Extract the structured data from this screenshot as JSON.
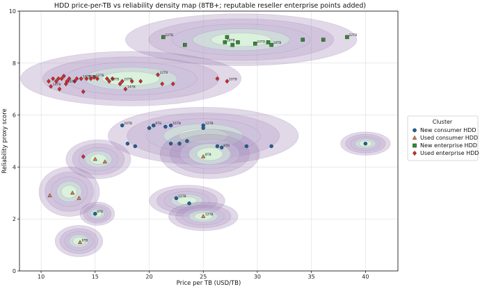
{
  "chart_data": {
    "type": "scatter",
    "title": "HDD price-per-TB vs reliability density map (8TB+; reputable reseller enterprise points added)",
    "xlabel": "Price per TB (USD/TB)",
    "ylabel": "Reliability proxy score",
    "xlim": [
      8,
      43
    ],
    "ylim": [
      0,
      10
    ],
    "xticks": [
      10,
      15,
      20,
      25,
      30,
      35,
      40
    ],
    "yticks": [
      0,
      2,
      4,
      6,
      8,
      10
    ],
    "grid": true,
    "legend": {
      "title": "Cluster",
      "placement": "right",
      "entries": [
        "New consumer HDD",
        "Used consumer HDD",
        "New enterprise HDD",
        "Used enterprise HDD"
      ]
    },
    "colors": {
      "New consumer HDD": "#1f5fa0",
      "Used consumer HDD": "#e07b39",
      "New enterprise HDD": "#2e8b2e",
      "Used enterprise HDD": "#d62728",
      "density_outer": "#9b7fb3",
      "density_inner": "#dcf5dc"
    },
    "density_regions": [
      {
        "cx": 28.5,
        "cy": 8.9,
        "rx": 10.7,
        "ry": 1.0
      },
      {
        "cx": 18.3,
        "cy": 7.4,
        "rx": 10.2,
        "ry": 1.05
      },
      {
        "cx": 25.0,
        "cy": 5.2,
        "rx": 8.8,
        "ry": 1.1
      },
      {
        "cx": 25.6,
        "cy": 4.5,
        "rx": 4.6,
        "ry": 0.95
      },
      {
        "cx": 40.0,
        "cy": 4.9,
        "rx": 2.3,
        "ry": 0.45
      },
      {
        "cx": 12.6,
        "cy": 3.05,
        "rx": 2.8,
        "ry": 0.95
      },
      {
        "cx": 15.3,
        "cy": 4.3,
        "rx": 3.0,
        "ry": 0.75
      },
      {
        "cx": 15.2,
        "cy": 2.2,
        "rx": 1.6,
        "ry": 0.45
      },
      {
        "cx": 13.5,
        "cy": 1.15,
        "rx": 2.2,
        "ry": 0.6
      },
      {
        "cx": 23.5,
        "cy": 2.7,
        "rx": 3.5,
        "ry": 0.6
      },
      {
        "cx": 25.0,
        "cy": 2.1,
        "rx": 3.2,
        "ry": 0.55
      }
    ],
    "series": [
      {
        "name": "New consumer HDD",
        "marker": "circle",
        "points": [
          {
            "x": 17.5,
            "y": 5.6,
            "label": "20TB"
          },
          {
            "x": 18.0,
            "y": 4.9,
            "label": ""
          },
          {
            "x": 18.7,
            "y": 4.8,
            "label": ""
          },
          {
            "x": 20.0,
            "y": 5.5,
            "label": ""
          },
          {
            "x": 20.4,
            "y": 5.6,
            "label": "8TB"
          },
          {
            "x": 21.5,
            "y": 5.55,
            "label": ""
          },
          {
            "x": 22.0,
            "y": 5.6,
            "label": "16TB"
          },
          {
            "x": 22.0,
            "y": 4.9,
            "label": ""
          },
          {
            "x": 22.8,
            "y": 4.9,
            "label": ""
          },
          {
            "x": 23.5,
            "y": 5.0,
            "label": ""
          },
          {
            "x": 25.0,
            "y": 5.6,
            "label": "12TB"
          },
          {
            "x": 25.0,
            "y": 5.5,
            "label": ""
          },
          {
            "x": 26.3,
            "y": 4.8,
            "label": ""
          },
          {
            "x": 26.7,
            "y": 4.75,
            "label": "8TB"
          },
          {
            "x": 29.0,
            "y": 4.8,
            "label": ""
          },
          {
            "x": 31.3,
            "y": 4.8,
            "label": ""
          },
          {
            "x": 22.5,
            "y": 2.8,
            "label": "12TB"
          },
          {
            "x": 23.7,
            "y": 2.6,
            "label": ""
          },
          {
            "x": 15.0,
            "y": 2.2,
            "label": "8TB"
          },
          {
            "x": 40.0,
            "y": 4.9,
            "label": ""
          }
        ]
      },
      {
        "name": "Used consumer HDD",
        "marker": "triangle",
        "points": [
          {
            "x": 10.8,
            "y": 2.9,
            "label": ""
          },
          {
            "x": 12.9,
            "y": 3.0,
            "label": ""
          },
          {
            "x": 13.5,
            "y": 2.8,
            "label": ""
          },
          {
            "x": 15.0,
            "y": 4.3,
            "label": ""
          },
          {
            "x": 15.9,
            "y": 4.2,
            "label": ""
          },
          {
            "x": 13.6,
            "y": 1.1,
            "label": "8TB"
          },
          {
            "x": 25.0,
            "y": 2.1,
            "label": "12TB"
          },
          {
            "x": 25.0,
            "y": 4.4,
            "label": "8TB"
          }
        ]
      },
      {
        "name": "New enterprise HDD",
        "marker": "square",
        "points": [
          {
            "x": 21.3,
            "y": 9.0,
            "label": "22TB"
          },
          {
            "x": 23.3,
            "y": 8.7,
            "label": ""
          },
          {
            "x": 27.0,
            "y": 8.8,
            "label": "18TB"
          },
          {
            "x": 27.2,
            "y": 9.0,
            "label": ""
          },
          {
            "x": 27.7,
            "y": 8.7,
            "label": ""
          },
          {
            "x": 28.2,
            "y": 8.8,
            "label": ""
          },
          {
            "x": 29.8,
            "y": 8.75,
            "label": "20TB"
          },
          {
            "x": 31.0,
            "y": 8.8,
            "label": ""
          },
          {
            "x": 31.3,
            "y": 8.7,
            "label": "16TB"
          },
          {
            "x": 34.2,
            "y": 8.9,
            "label": ""
          },
          {
            "x": 36.1,
            "y": 8.9,
            "label": ""
          },
          {
            "x": 38.3,
            "y": 9.0,
            "label": "22TB"
          }
        ]
      },
      {
        "name": "Used enterprise HDD",
        "marker": "diamond",
        "points": [
          {
            "x": 10.7,
            "y": 7.3,
            "label": ""
          },
          {
            "x": 10.9,
            "y": 7.1,
            "label": "14TB"
          },
          {
            "x": 11.1,
            "y": 7.4,
            "label": ""
          },
          {
            "x": 11.4,
            "y": 7.3,
            "label": ""
          },
          {
            "x": 11.6,
            "y": 7.4,
            "label": ""
          },
          {
            "x": 11.7,
            "y": 7.0,
            "label": ""
          },
          {
            "x": 11.9,
            "y": 7.4,
            "label": ""
          },
          {
            "x": 12.1,
            "y": 7.5,
            "label": ""
          },
          {
            "x": 12.3,
            "y": 7.2,
            "label": "16TB"
          },
          {
            "x": 12.4,
            "y": 7.3,
            "label": ""
          },
          {
            "x": 12.6,
            "y": 7.4,
            "label": ""
          },
          {
            "x": 13.1,
            "y": 7.3,
            "label": ""
          },
          {
            "x": 13.3,
            "y": 7.4,
            "label": ""
          },
          {
            "x": 13.7,
            "y": 7.4,
            "label": "14TB"
          },
          {
            "x": 13.9,
            "y": 6.9,
            "label": ""
          },
          {
            "x": 14.2,
            "y": 7.4,
            "label": "20TB"
          },
          {
            "x": 14.6,
            "y": 7.4,
            "label": ""
          },
          {
            "x": 14.9,
            "y": 7.45,
            "label": "12TB"
          },
          {
            "x": 15.2,
            "y": 7.4,
            "label": ""
          },
          {
            "x": 16.1,
            "y": 7.4,
            "label": ""
          },
          {
            "x": 16.3,
            "y": 7.3,
            "label": "18TB"
          },
          {
            "x": 16.6,
            "y": 7.4,
            "label": ""
          },
          {
            "x": 17.3,
            "y": 7.2,
            "label": ""
          },
          {
            "x": 17.5,
            "y": 7.3,
            "label": "20TB"
          },
          {
            "x": 17.8,
            "y": 7.0,
            "label": "14TB"
          },
          {
            "x": 18.4,
            "y": 7.3,
            "label": ""
          },
          {
            "x": 19.2,
            "y": 7.3,
            "label": ""
          },
          {
            "x": 20.8,
            "y": 7.55,
            "label": "22TB"
          },
          {
            "x": 21.2,
            "y": 7.2,
            "label": ""
          },
          {
            "x": 22.2,
            "y": 7.2,
            "label": ""
          },
          {
            "x": 26.3,
            "y": 7.4,
            "label": ""
          },
          {
            "x": 27.2,
            "y": 7.3,
            "label": "20TB"
          },
          {
            "x": 13.9,
            "y": 4.4,
            "label": ""
          }
        ]
      }
    ]
  }
}
